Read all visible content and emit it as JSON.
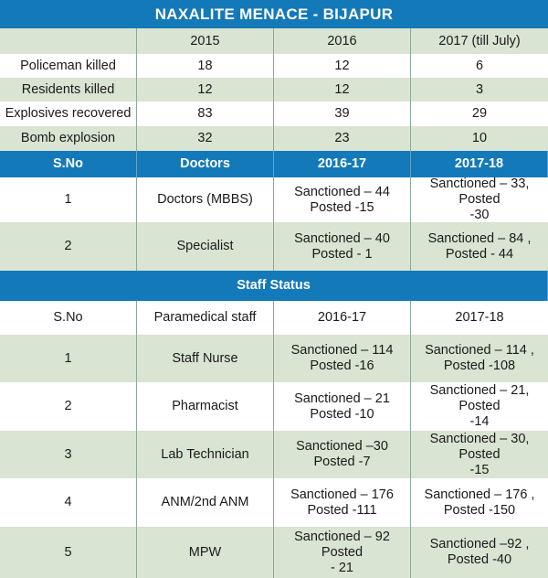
{
  "title": "NAXALITE MENACE - BIJAPUR",
  "naxal": {
    "headers": [
      "",
      "2015",
      "2016",
      "2017 (till July)"
    ],
    "rows": [
      [
        "Policeman killed",
        "18",
        "12",
        "6"
      ],
      [
        "Residents killed",
        "12",
        "12",
        "3"
      ],
      [
        "Explosives recovered",
        "83",
        "39",
        "29"
      ],
      [
        "Bomb explosion",
        "32",
        "23",
        "10"
      ]
    ]
  },
  "doctors": {
    "headers": [
      "S.No",
      "Doctors",
      "2016-17",
      "2017-18"
    ],
    "rows": [
      [
        "1",
        "Doctors (MBBS)",
        "Sanctioned – 44\nPosted -15",
        "Sanctioned – 33, Posted\n-30"
      ],
      [
        "2",
        "Specialist",
        "Sanctioned –  40\nPosted - 1",
        "Sanctioned – 84 ,\nPosted - 44"
      ]
    ]
  },
  "staff": {
    "heading": "Staff Status",
    "headers": [
      "S.No",
      "Paramedical staff",
      "2016-17",
      "2017-18"
    ],
    "rows": [
      [
        "1",
        "Staff Nurse",
        "Sanctioned – 114\nPosted -16",
        "Sanctioned – 114 ,\nPosted -108"
      ],
      [
        "2",
        "Pharmacist",
        "Sanctioned –  21\nPosted -10",
        "Sanctioned – 21, Posted\n-14"
      ],
      [
        "3",
        "Lab Technician",
        "Sanctioned –30\nPosted -7",
        "Sanctioned – 30, Posted\n-15"
      ],
      [
        "4",
        "ANM/2nd ANM",
        "Sanctioned – 176\nPosted -111",
        "Sanctioned – 176 ,\nPosted -150"
      ],
      [
        "5",
        "MPW",
        "Sanctioned – 92 Posted\n- 21",
        "Sanctioned –92 ,\nPosted -40"
      ]
    ]
  },
  "colors": {
    "header_blue": "#1479b8",
    "row_green": "#d9e4d2",
    "row_white": "#ffffff"
  }
}
